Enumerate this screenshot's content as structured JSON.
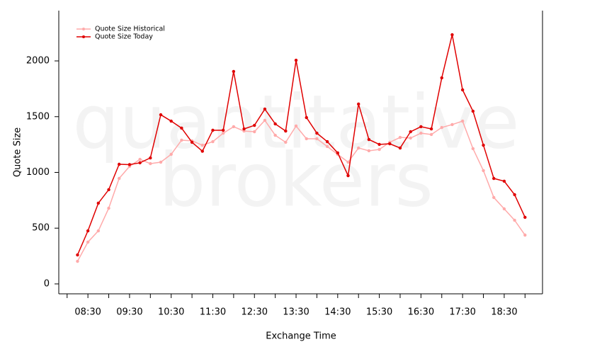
{
  "chart_data": {
    "type": "line",
    "watermark": [
      "quantitative",
      "brokers"
    ],
    "xlabel": "Exchange Time",
    "ylabel": "Quote Size",
    "x": [
      8.25,
      8.5,
      8.75,
      9.0,
      9.25,
      9.5,
      9.75,
      10.0,
      10.25,
      10.5,
      10.75,
      11.0,
      11.25,
      11.5,
      11.75,
      12.0,
      12.25,
      12.5,
      12.75,
      13.0,
      13.25,
      13.5,
      13.75,
      14.0,
      14.25,
      14.5,
      14.75,
      15.0,
      15.25,
      15.5,
      15.75,
      16.0,
      16.25,
      16.5,
      16.75,
      17.0,
      17.25,
      17.5,
      17.75,
      18.0,
      18.25,
      18.5,
      18.75,
      19.0
    ],
    "series": [
      {
        "name": "Quote Size Historical",
        "color": "#ffaaaa",
        "values": [
          203,
          375,
          476,
          679,
          946,
          1054,
          1117,
          1079,
          1092,
          1162,
          1289,
          1283,
          1244,
          1276,
          1352,
          1410,
          1371,
          1365,
          1467,
          1333,
          1270,
          1416,
          1302,
          1302,
          1232,
          1162,
          1092,
          1219,
          1194,
          1206,
          1270,
          1314,
          1308,
          1352,
          1340,
          1403,
          1429,
          1460,
          1213,
          1016,
          775,
          673,
          571,
          438
        ]
      },
      {
        "name": "Quote Size Today",
        "color": "#e00000",
        "values": [
          260,
          476,
          724,
          845,
          1073,
          1070,
          1086,
          1130,
          1517,
          1460,
          1397,
          1270,
          1190,
          1378,
          1378,
          1905,
          1390,
          1422,
          1568,
          1435,
          1371,
          2006,
          1492,
          1352,
          1276,
          1175,
          971,
          1613,
          1295,
          1251,
          1257,
          1219,
          1365,
          1410,
          1390,
          1848,
          2235,
          1740,
          1549,
          1244,
          946,
          921,
          800,
          597
        ]
      }
    ],
    "xlim": [
      7.8,
      19.42
    ],
    "xticks": [
      {
        "value": 8.5,
        "label": "08:30"
      },
      {
        "value": 9.5,
        "label": "09:30"
      },
      {
        "value": 10.5,
        "label": "10:30"
      },
      {
        "value": 11.5,
        "label": "11:30"
      },
      {
        "value": 12.5,
        "label": "12:30"
      },
      {
        "value": 13.5,
        "label": "13:30"
      },
      {
        "value": 14.5,
        "label": "14:30"
      },
      {
        "value": 15.5,
        "label": "15:30"
      },
      {
        "value": 16.5,
        "label": "16:30"
      },
      {
        "value": 17.5,
        "label": "17:30"
      },
      {
        "value": 18.5,
        "label": "18:30"
      }
    ],
    "xminorticks": [
      8,
      9,
      10,
      11,
      12,
      13,
      14,
      15,
      16,
      17,
      18,
      19
    ],
    "ylim": [
      -89,
      2451
    ],
    "yticks": [
      0,
      500,
      1000,
      1500,
      2000
    ],
    "legend": "top-left"
  }
}
